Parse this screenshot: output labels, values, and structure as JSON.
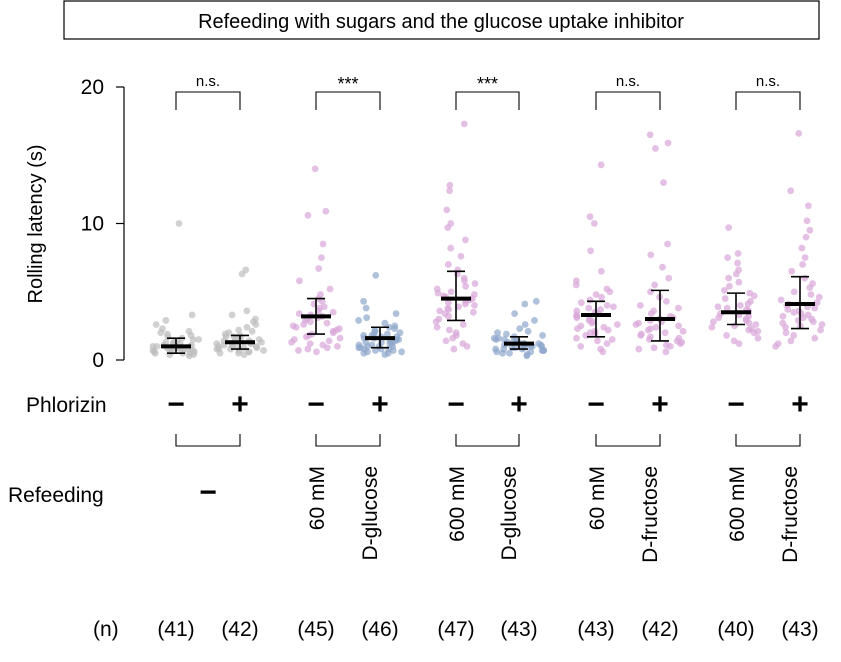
{
  "chart_data": {
    "type": "scatter",
    "title": "Refeeding with sugars and the glucose uptake inhibitor",
    "ylabel": "Rolling latency (s)",
    "xlabel": "",
    "ylim": [
      0,
      20
    ],
    "yticks": [
      0,
      10,
      20
    ],
    "grid": false,
    "row_labels": {
      "phlorizin": "Phlorizin",
      "refeeding": "Refeeding",
      "n": "(n)"
    },
    "groups": [
      {
        "refeeding": "−",
        "refeeding_lines": [],
        "significance": "n.s.",
        "columns": [
          {
            "phlorizin": "−",
            "n_label": "(41)",
            "color": "#bdbdbd",
            "mean": 1.0,
            "sd_low": 0.5,
            "sd_high": 1.6,
            "points": [
              10.0,
              3.3,
              2.9,
              2.6,
              2.3,
              2.1,
              2.0,
              1.9,
              1.8,
              1.7,
              1.6,
              1.5,
              1.5,
              1.4,
              1.3,
              1.3,
              1.2,
              1.2,
              1.1,
              1.1,
              1.0,
              1.0,
              1.0,
              0.9,
              0.9,
              0.9,
              0.8,
              0.8,
              0.8,
              0.7,
              0.7,
              0.7,
              0.6,
              0.6,
              0.6,
              0.5,
              0.5,
              0.5,
              0.4,
              0.4,
              0.3
            ]
          },
          {
            "phlorizin": "+",
            "n_label": "(42)",
            "color": "#bdbdbd",
            "mean": 1.3,
            "sd_low": 0.8,
            "sd_high": 1.8,
            "points": [
              6.6,
              6.3,
              3.6,
              3.3,
              3.0,
              2.8,
              2.6,
              2.4,
              2.2,
              2.1,
              2.0,
              1.9,
              1.8,
              1.7,
              1.7,
              1.6,
              1.5,
              1.5,
              1.4,
              1.4,
              1.3,
              1.3,
              1.2,
              1.2,
              1.1,
              1.1,
              1.0,
              1.0,
              1.0,
              0.9,
              0.9,
              0.9,
              0.8,
              0.8,
              0.8,
              0.7,
              0.7,
              0.6,
              0.6,
              0.5,
              0.5,
              0.4
            ]
          }
        ]
      },
      {
        "refeeding": "",
        "refeeding_lines": [
          "60 mM",
          "D-glucose"
        ],
        "significance": "***",
        "columns": [
          {
            "phlorizin": "−",
            "n_label": "(45)",
            "color": "#d9a6d9",
            "mean": 3.2,
            "sd_low": 1.9,
            "sd_high": 4.5,
            "points": [
              14.0,
              10.9,
              10.6,
              8.5,
              7.5,
              6.7,
              5.8,
              5.2,
              4.8,
              4.5,
              4.3,
              4.1,
              3.9,
              3.8,
              3.6,
              3.5,
              3.4,
              3.3,
              3.2,
              3.1,
              3.0,
              2.9,
              2.8,
              2.7,
              2.6,
              2.5,
              2.4,
              2.3,
              2.2,
              2.1,
              2.0,
              1.9,
              1.8,
              1.7,
              1.6,
              1.5,
              1.4,
              1.3,
              1.2,
              1.1,
              1.0,
              0.9,
              0.8,
              0.7,
              0.6
            ]
          },
          {
            "phlorizin": "+",
            "n_label": "(46)",
            "color": "#8fa6cc",
            "mean": 1.6,
            "sd_low": 0.9,
            "sd_high": 2.4,
            "points": [
              6.2,
              4.3,
              3.8,
              3.4,
              3.1,
              2.9,
              2.7,
              2.5,
              2.4,
              2.3,
              2.2,
              2.1,
              2.0,
              1.9,
              1.9,
              1.8,
              1.8,
              1.7,
              1.7,
              1.6,
              1.6,
              1.5,
              1.5,
              1.4,
              1.4,
              1.3,
              1.3,
              1.2,
              1.2,
              1.1,
              1.1,
              1.0,
              1.0,
              1.0,
              0.9,
              0.9,
              0.8,
              0.8,
              0.8,
              0.7,
              0.7,
              0.6,
              0.6,
              0.5,
              0.5,
              0.4
            ]
          }
        ]
      },
      {
        "refeeding": "",
        "refeeding_lines": [
          "600 mM",
          "D-glucose"
        ],
        "significance": "***",
        "columns": [
          {
            "phlorizin": "−",
            "n_label": "(47)",
            "color": "#d9a6d9",
            "mean": 4.5,
            "sd_low": 2.9,
            "sd_high": 6.5,
            "points": [
              17.3,
              12.8,
              12.4,
              11.0,
              10.0,
              9.7,
              8.8,
              8.2,
              7.6,
              7.0,
              6.6,
              6.3,
              6.0,
              5.8,
              5.6,
              5.4,
              5.2,
              5.0,
              4.9,
              4.8,
              4.7,
              4.6,
              4.5,
              4.4,
              4.3,
              4.2,
              4.1,
              4.0,
              3.9,
              3.8,
              3.7,
              3.6,
              3.5,
              3.4,
              3.2,
              3.0,
              2.8,
              2.6,
              2.4,
              2.2,
              2.0,
              1.8,
              1.6,
              1.4,
              1.2,
              1.0,
              0.8
            ]
          },
          {
            "phlorizin": "+",
            "n_label": "(43)",
            "color": "#8fa6cc",
            "mean": 1.2,
            "sd_low": 0.8,
            "sd_high": 1.7,
            "points": [
              4.3,
              4.1,
              3.4,
              2.9,
              2.6,
              2.3,
              2.1,
              2.0,
              1.9,
              1.8,
              1.7,
              1.6,
              1.6,
              1.5,
              1.5,
              1.4,
              1.4,
              1.3,
              1.3,
              1.2,
              1.2,
              1.2,
              1.1,
              1.1,
              1.1,
              1.0,
              1.0,
              1.0,
              0.9,
              0.9,
              0.9,
              0.8,
              0.8,
              0.8,
              0.7,
              0.7,
              0.7,
              0.6,
              0.6,
              0.5,
              0.5,
              0.4,
              0.3
            ]
          }
        ]
      },
      {
        "refeeding": "",
        "refeeding_lines": [
          "60 mM",
          "D-fructose"
        ],
        "significance": "n.s.",
        "columns": [
          {
            "phlorizin": "−",
            "n_label": "(43)",
            "color": "#d9a6d9",
            "mean": 3.3,
            "sd_low": 1.7,
            "sd_high": 4.3,
            "points": [
              14.3,
              10.5,
              10.0,
              8.0,
              6.5,
              5.8,
              5.5,
              5.2,
              5.0,
              4.8,
              4.6,
              4.4,
              4.2,
              4.0,
              3.9,
              3.8,
              3.7,
              3.6,
              3.5,
              3.4,
              3.3,
              3.2,
              3.1,
              3.0,
              2.9,
              2.8,
              2.7,
              2.6,
              2.5,
              2.4,
              2.3,
              2.2,
              2.1,
              2.0,
              1.9,
              1.8,
              1.6,
              1.5,
              1.4,
              1.2,
              1.0,
              0.8,
              0.6
            ]
          },
          {
            "phlorizin": "+",
            "n_label": "(42)",
            "color": "#d9a6d9",
            "mean": 3.0,
            "sd_low": 1.4,
            "sd_high": 5.1,
            "points": [
              16.5,
              15.9,
              15.5,
              13.0,
              8.5,
              7.7,
              6.8,
              6.0,
              5.5,
              5.0,
              4.6,
              4.3,
              4.0,
              3.8,
              3.6,
              3.4,
              3.2,
              3.1,
              3.0,
              2.9,
              2.8,
              2.7,
              2.6,
              2.5,
              2.4,
              2.3,
              2.2,
              2.1,
              2.0,
              1.9,
              1.8,
              1.7,
              1.6,
              1.5,
              1.4,
              1.3,
              1.2,
              1.1,
              1.0,
              0.9,
              0.8,
              0.6
            ]
          }
        ]
      },
      {
        "refeeding": "",
        "refeeding_lines": [
          "600 mM",
          "D-fructose"
        ],
        "significance": "n.s.",
        "columns": [
          {
            "phlorizin": "−",
            "n_label": "(40)",
            "color": "#d9a6d9",
            "mean": 3.5,
            "sd_low": 2.6,
            "sd_high": 4.9,
            "points": [
              9.7,
              7.8,
              7.5,
              7.1,
              6.6,
              6.3,
              6.0,
              5.7,
              5.4,
              5.1,
              4.9,
              4.7,
              4.5,
              4.3,
              4.1,
              4.0,
              3.9,
              3.8,
              3.7,
              3.6,
              3.5,
              3.4,
              3.3,
              3.2,
              3.1,
              3.0,
              2.9,
              2.8,
              2.7,
              2.6,
              2.5,
              2.4,
              2.3,
              2.2,
              2.1,
              2.0,
              1.8,
              1.6,
              1.4,
              1.2
            ]
          },
          {
            "phlorizin": "+",
            "n_label": "(43)",
            "color": "#d9a6d9",
            "mean": 4.1,
            "sd_low": 2.3,
            "sd_high": 6.1,
            "points": [
              16.6,
              12.4,
              11.3,
              10.2,
              9.5,
              9.0,
              8.2,
              7.5,
              7.0,
              6.5,
              6.0,
              5.6,
              5.3,
              5.0,
              4.8,
              4.6,
              4.4,
              4.2,
              4.1,
              4.0,
              3.9,
              3.8,
              3.7,
              3.6,
              3.5,
              3.4,
              3.3,
              3.2,
              3.1,
              3.0,
              2.9,
              2.8,
              2.7,
              2.6,
              2.5,
              2.4,
              2.2,
              2.0,
              1.8,
              1.6,
              1.4,
              1.2,
              1.0
            ]
          }
        ]
      }
    ]
  }
}
